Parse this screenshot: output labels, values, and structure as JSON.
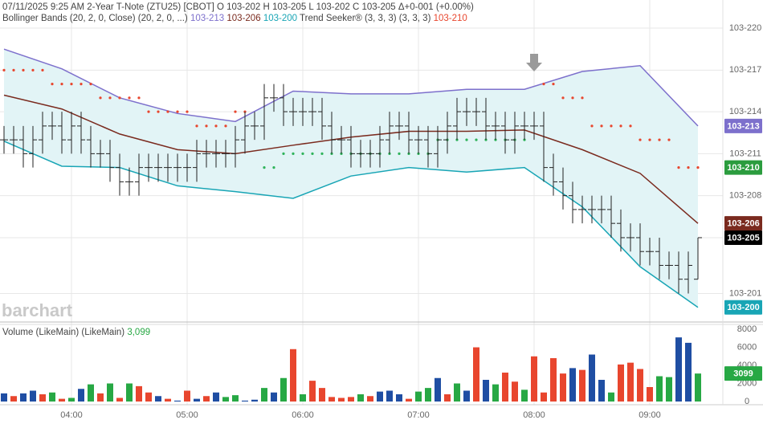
{
  "chart_data": [
    {
      "type": "ohlc",
      "header": "07/11/2025  9:25 AM 2-Year T-Note (ZTU25) [CBOT] O 103-202 H 103-205 L 103-202 C 103-205 Δ+0-001 (+0.00%)",
      "watermark": "barchart",
      "x": [
        "03:25",
        "03:30",
        "03:35",
        "03:40",
        "03:45",
        "03:50",
        "03:55",
        "04:00",
        "04:05",
        "04:10",
        "04:15",
        "04:20",
        "04:25",
        "04:30",
        "04:35",
        "04:40",
        "04:45",
        "04:50",
        "04:55",
        "05:00",
        "05:05",
        "05:10",
        "05:15",
        "05:20",
        "05:25",
        "05:30",
        "05:35",
        "05:40",
        "05:45",
        "05:50",
        "05:55",
        "06:00",
        "06:05",
        "06:10",
        "06:15",
        "06:20",
        "06:25",
        "06:30",
        "06:35",
        "06:40",
        "06:45",
        "06:50",
        "06:55",
        "07:00",
        "07:05",
        "07:10",
        "07:15",
        "07:20",
        "07:25",
        "07:30",
        "07:35",
        "07:40",
        "07:45",
        "07:50",
        "07:55",
        "08:00",
        "08:05",
        "08:10",
        "08:15",
        "08:20",
        "08:25",
        "08:30",
        "08:35",
        "08:40",
        "08:45",
        "08:50",
        "08:55",
        "09:00",
        "09:05",
        "09:10",
        "09:15",
        "09:20",
        "09:25"
      ],
      "xticks": [
        "04:00",
        "05:00",
        "06:00",
        "07:00",
        "08:00",
        "09:00"
      ],
      "ylim": [
        103.6219,
        103.6938
      ],
      "yticks": [
        {
          "value": 103.6875,
          "label": "103-220"
        },
        {
          "value": 103.6781,
          "label": "103-217"
        },
        {
          "value": 103.6688,
          "label": "103-214"
        },
        {
          "value": 103.6594,
          "label": "103-211"
        },
        {
          "value": 103.65,
          "label": "103-208"
        },
        {
          "value": 103.6406,
          "label": "103-205"
        },
        {
          "value": 103.6281,
          "label": "103-201"
        }
      ],
      "grid": true,
      "color": "#222222",
      "open": [
        103.6625,
        103.6625,
        103.6625,
        103.6594,
        103.6625,
        103.6656,
        103.6656,
        103.6625,
        103.6656,
        103.6625,
        103.6594,
        103.6594,
        103.6563,
        103.6531,
        103.6531,
        103.6563,
        103.6563,
        103.6563,
        103.6563,
        103.6563,
        103.6563,
        103.6594,
        103.6594,
        103.6594,
        103.6594,
        103.6625,
        103.6656,
        103.6656,
        103.6719,
        103.6719,
        103.6688,
        103.6688,
        103.6688,
        103.6688,
        103.6656,
        103.6625,
        103.6625,
        103.6594,
        103.6594,
        103.6594,
        103.6625,
        103.6656,
        103.6656,
        103.6625,
        103.6625,
        103.6594,
        103.6625,
        103.6656,
        103.6688,
        103.6688,
        103.6688,
        103.6656,
        103.6656,
        103.6625,
        103.6656,
        103.6656,
        103.6656,
        103.6563,
        103.6531,
        103.65,
        103.6469,
        103.6469,
        103.6469,
        103.6469,
        103.6438,
        103.6406,
        103.6406,
        103.6375,
        103.6375,
        103.6344,
        103.6344,
        103.6313,
        103.6313
      ],
      "high": [
        103.6656,
        103.6656,
        103.6656,
        103.6656,
        103.6688,
        103.6688,
        103.6688,
        103.6688,
        103.6688,
        103.6656,
        103.6625,
        103.6625,
        103.6594,
        103.6563,
        103.6594,
        103.6594,
        103.6594,
        103.6594,
        103.6594,
        103.6594,
        103.6625,
        103.6625,
        103.6625,
        103.6625,
        103.6656,
        103.6688,
        103.6688,
        103.675,
        103.675,
        103.675,
        103.6719,
        103.6719,
        103.6719,
        103.6719,
        103.6688,
        103.6656,
        103.6656,
        103.6625,
        103.6625,
        103.6656,
        103.6688,
        103.6688,
        103.6688,
        103.6656,
        103.6656,
        103.6656,
        103.6688,
        103.6719,
        103.6719,
        103.6719,
        103.6719,
        103.6688,
        103.6688,
        103.6688,
        103.6688,
        103.6688,
        103.6688,
        103.6594,
        103.6563,
        103.6531,
        103.65,
        103.65,
        103.65,
        103.65,
        103.6469,
        103.6438,
        103.6438,
        103.6406,
        103.6406,
        103.6375,
        103.6375,
        103.6375,
        103.6406
      ],
      "low": [
        103.6594,
        103.6594,
        103.6563,
        103.6563,
        103.6594,
        103.6625,
        103.6594,
        103.6594,
        103.6594,
        103.6563,
        103.6563,
        103.6531,
        103.65,
        103.65,
        103.65,
        103.6531,
        103.6531,
        103.6531,
        103.6531,
        103.6531,
        103.6531,
        103.6563,
        103.6563,
        103.6563,
        103.6563,
        103.6594,
        103.6625,
        103.6625,
        103.6688,
        103.6656,
        103.6656,
        103.6656,
        103.6656,
        103.6625,
        103.6594,
        103.6594,
        103.6563,
        103.6563,
        103.6563,
        103.6563,
        103.6594,
        103.6625,
        103.6594,
        103.6594,
        103.6563,
        103.6563,
        103.6594,
        103.6625,
        103.6656,
        103.6656,
        103.6625,
        103.6625,
        103.6594,
        103.6594,
        103.6625,
        103.6625,
        103.6531,
        103.65,
        103.6469,
        103.6438,
        103.6438,
        103.6438,
        103.6438,
        103.6406,
        103.6375,
        103.6375,
        103.6344,
        103.6344,
        103.6313,
        103.6313,
        103.6281,
        103.6281,
        103.6313
      ],
      "close": [
        103.6625,
        103.6625,
        103.6594,
        103.6625,
        103.6656,
        103.6656,
        103.6625,
        103.6656,
        103.6625,
        103.6594,
        103.6594,
        103.6563,
        103.6531,
        103.6531,
        103.6563,
        103.6563,
        103.6563,
        103.6563,
        103.6563,
        103.6563,
        103.6594,
        103.6594,
        103.6594,
        103.6594,
        103.6625,
        103.6656,
        103.6656,
        103.6719,
        103.6719,
        103.6688,
        103.6688,
        103.6688,
        103.6688,
        103.6656,
        103.6625,
        103.6625,
        103.6594,
        103.6594,
        103.6594,
        103.6625,
        103.6656,
        103.6656,
        103.6625,
        103.6625,
        103.6594,
        103.6625,
        103.6656,
        103.6688,
        103.6688,
        103.6688,
        103.6656,
        103.6656,
        103.6625,
        103.6656,
        103.6656,
        103.6656,
        103.6563,
        103.6531,
        103.65,
        103.6469,
        103.6469,
        103.6469,
        103.6469,
        103.6438,
        103.6406,
        103.6406,
        103.6375,
        103.6375,
        103.6344,
        103.6344,
        103.6313,
        103.6344,
        103.6406
      ],
      "last_label": "103-205",
      "last_color": "#000000",
      "bands": {
        "label": "Bollinger Bands (20, 2, 0, Close)  (20, 2, 0, ...)",
        "fill": "#e2f4f6",
        "x": [
          "03:25",
          "03:55",
          "04:25",
          "04:55",
          "05:25",
          "05:55",
          "06:25",
          "06:55",
          "07:25",
          "07:55",
          "08:25",
          "08:55",
          "09:25"
        ],
        "series": [
          {
            "color": "#7d70cc",
            "values": [
              103.6828,
              103.6784,
              103.6719,
              103.6684,
              103.6666,
              103.6734,
              103.6728,
              103.6728,
              103.6738,
              103.6738,
              103.6778,
              103.6791,
              103.6656
            ],
            "last_label": "103-213"
          },
          {
            "color": "#7a2a1e",
            "values": [
              103.6725,
              103.6694,
              103.6638,
              103.6603,
              103.6594,
              103.6613,
              103.6631,
              103.6644,
              103.6644,
              103.6647,
              103.6603,
              103.655,
              103.6438
            ],
            "last_label": "103-206"
          },
          {
            "color": "#18a5b5",
            "values": [
              103.6622,
              103.6566,
              103.6563,
              103.6522,
              103.6509,
              103.6494,
              103.6544,
              103.6563,
              103.6553,
              103.6563,
              103.6475,
              103.6341,
              103.625
            ],
            "last_label": "103-200"
          }
        ]
      },
      "trend_seeker": {
        "label": "Trend Seeker® (3, 3, 3)  (3, 3, 3)",
        "above_color": "#e8462e",
        "below_color": "#2fb35a",
        "box_color": "#2b9c3e",
        "last_label": "103-210",
        "values": [
          103.6781,
          103.6781,
          103.6781,
          103.6781,
          103.6781,
          103.675,
          103.675,
          103.675,
          103.675,
          103.675,
          103.6719,
          103.6719,
          103.6719,
          103.6719,
          103.6719,
          103.6688,
          103.6688,
          103.6688,
          103.6688,
          103.6688,
          103.6656,
          103.6656,
          103.6656,
          103.6656,
          103.6688,
          103.6688,
          null,
          103.6563,
          103.6563,
          103.6594,
          103.6594,
          103.6594,
          103.6594,
          103.6594,
          103.6594,
          103.6594,
          103.6594,
          103.6594,
          103.6594,
          103.6594,
          103.6594,
          103.6594,
          103.6594,
          103.6594,
          103.6594,
          103.6625,
          103.6625,
          103.6625,
          103.6625,
          103.6625,
          103.6625,
          103.6625,
          103.6625,
          103.6625,
          103.6625,
          null,
          103.675,
          103.675,
          103.6719,
          103.6719,
          103.6719,
          103.6656,
          103.6656,
          103.6656,
          103.6656,
          103.6656,
          103.6625,
          103.6625,
          103.6625,
          103.6625,
          103.6563,
          103.6563,
          103.6563
        ]
      }
    },
    {
      "type": "bar",
      "title": "Volume (LikeMain)  (LikeMain)",
      "last_label": "3,099",
      "last_color": "#27a844",
      "ylim": [
        0,
        8500
      ],
      "yticks": [
        0,
        2000,
        4000,
        6000,
        8000
      ],
      "values": [
        900,
        600,
        900,
        1200,
        800,
        1000,
        300,
        400,
        1400,
        1900,
        900,
        2000,
        400,
        2000,
        1700,
        1000,
        600,
        300,
        100,
        1200,
        300,
        600,
        1000,
        500,
        700,
        100,
        200,
        1500,
        1000,
        2600,
        5800,
        800,
        2300,
        1500,
        500,
        400,
        500,
        800,
        600,
        1100,
        1200,
        800,
        300,
        1100,
        1500,
        2600,
        800,
        2000,
        1200,
        6000,
        2400,
        1900,
        3200,
        2200,
        1300,
        5000,
        1000,
        4800,
        3100,
        3700,
        3500,
        5200,
        2400,
        1000,
        4100,
        4300,
        3600,
        1600,
        2800,
        2700,
        7100,
        6500,
        3099
      ],
      "colors": [
        "#1f4ea3",
        "#e8462e",
        "#1f4ea3",
        "#1f4ea3",
        "#e8462e",
        "#27a844",
        "#e8462e",
        "#27a844",
        "#1f4ea3",
        "#27a844",
        "#e8462e",
        "#27a844",
        "#e8462e",
        "#27a844",
        "#e8462e",
        "#e8462e",
        "#1f4ea3",
        "#e8462e",
        "#1f4ea3",
        "#e8462e",
        "#1f4ea3",
        "#e8462e",
        "#1f4ea3",
        "#27a844",
        "#27a844",
        "#1f4ea3",
        "#1f4ea3",
        "#27a844",
        "#1f4ea3",
        "#27a844",
        "#e8462e",
        "#27a844",
        "#e8462e",
        "#e8462e",
        "#e8462e",
        "#e8462e",
        "#e8462e",
        "#27a844",
        "#e8462e",
        "#1f4ea3",
        "#1f4ea3",
        "#1f4ea3",
        "#e8462e",
        "#27a844",
        "#27a844",
        "#1f4ea3",
        "#e8462e",
        "#27a844",
        "#1f4ea3",
        "#e8462e",
        "#1f4ea3",
        "#27a844",
        "#e8462e",
        "#e8462e",
        "#27a844",
        "#e8462e",
        "#e8462e",
        "#e8462e",
        "#e8462e",
        "#1f4ea3",
        "#e8462e",
        "#1f4ea3",
        "#1f4ea3",
        "#27a844",
        "#e8462e",
        "#e8462e",
        "#e8462e",
        "#e8462e",
        "#27a844",
        "#27a844",
        "#1f4ea3",
        "#1f4ea3",
        "#27a844"
      ]
    }
  ]
}
